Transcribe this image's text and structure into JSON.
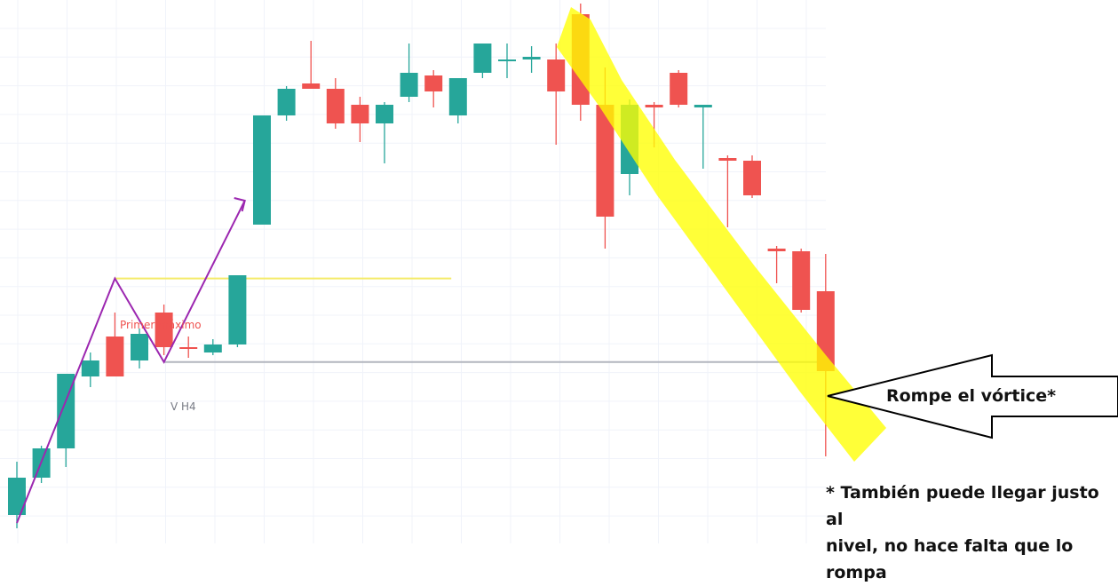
{
  "colors": {
    "up": "#26a69a",
    "down": "#ef5350",
    "grid": "#f0f3fa",
    "zigzag": "#9c27b0",
    "level_primer": "#f4eb67",
    "level_vh4": "#b2b5be",
    "highlight": "#ffff00",
    "text_dark": "#111111",
    "text_primer": "#ef5350",
    "text_vh4": "#787b86"
  },
  "annotations": {
    "primer_maximo": "Primer máximo",
    "v_h4": "V H4",
    "rompe": "Rompe el vórtice*",
    "footnote_line1": "* También puede llegar justo al",
    "footnote_line2": "nivel, no hace falta que lo rompa"
  },
  "chart_data": {
    "type": "candlestick",
    "title": "",
    "xlabel": "",
    "ylabel": "",
    "axes_labels_visible": false,
    "grid": true,
    "ylim": [
      0,
      100
    ],
    "levels": [
      {
        "label": "Primer máximo",
        "value": 47.4,
        "from_index": 4,
        "to_index": 17
      },
      {
        "label": "V H4",
        "value": 31.7,
        "from_index": 6,
        "to_index": 32
      }
    ],
    "zigzag": [
      {
        "index": 0,
        "value": 1.5
      },
      {
        "index": 4,
        "value": 47.4
      },
      {
        "index": 6,
        "value": 31.7
      },
      {
        "index": 9.3,
        "value": 62.0
      }
    ],
    "candles": [
      {
        "o": 3.0,
        "h": 13.0,
        "l": 0.5,
        "c": 10.0
      },
      {
        "o": 10.0,
        "h": 16.0,
        "l": 9.0,
        "c": 15.5
      },
      {
        "o": 15.5,
        "h": 28.5,
        "l": 12.0,
        "c": 29.5
      },
      {
        "o": 29.0,
        "h": 33.5,
        "l": 27.0,
        "c": 32.0
      },
      {
        "o": 36.5,
        "h": 41.0,
        "l": 29.0,
        "c": 29.0
      },
      {
        "o": 32.0,
        "h": 38.0,
        "l": 30.5,
        "c": 37.0
      },
      {
        "o": 41.0,
        "h": 42.5,
        "l": 33.0,
        "c": 34.5
      },
      {
        "o": 34.5,
        "h": 36.5,
        "l": 32.5,
        "c": 34.2
      },
      {
        "o": 33.5,
        "h": 36.0,
        "l": 33.0,
        "c": 35.0
      },
      {
        "o": 35.0,
        "h": 47.5,
        "l": 34.5,
        "c": 48.0
      },
      {
        "o": 57.5,
        "h": 78.0,
        "l": 57.5,
        "c": 78.0
      },
      {
        "o": 78.0,
        "h": 83.5,
        "l": 77.0,
        "c": 83.0
      },
      {
        "o": 84.0,
        "h": 92.0,
        "l": 83.5,
        "c": 83.0
      },
      {
        "o": 83.0,
        "h": 85.0,
        "l": 75.5,
        "c": 76.5
      },
      {
        "o": 80.0,
        "h": 81.5,
        "l": 73.0,
        "c": 76.5
      },
      {
        "o": 76.5,
        "h": 80.5,
        "l": 69.0,
        "c": 80.0
      },
      {
        "o": 81.5,
        "h": 91.5,
        "l": 80.5,
        "c": 86.0
      },
      {
        "o": 85.5,
        "h": 86.5,
        "l": 79.5,
        "c": 82.5
      },
      {
        "o": 78.0,
        "h": 85.0,
        "l": 76.5,
        "c": 85.0
      },
      {
        "o": 86.0,
        "h": 91.5,
        "l": 85.0,
        "c": 91.5
      },
      {
        "o": 88.5,
        "h": 91.5,
        "l": 85.0,
        "c": 88.5
      },
      {
        "o": 88.5,
        "h": 91.0,
        "l": 86.0,
        "c": 89.0
      },
      {
        "o": 88.5,
        "h": 91.5,
        "l": 72.5,
        "c": 82.5
      },
      {
        "o": 97.0,
        "h": 99.0,
        "l": 77.0,
        "c": 80.0
      },
      {
        "o": 80.0,
        "h": 87.0,
        "l": 53.0,
        "c": 59.0
      },
      {
        "o": 67.0,
        "h": 81.0,
        "l": 63.0,
        "c": 80.0
      },
      {
        "o": 80.0,
        "h": 80.5,
        "l": 72.0,
        "c": 79.5
      },
      {
        "o": 86.0,
        "h": 86.5,
        "l": 79.5,
        "c": 80.0
      },
      {
        "o": 79.5,
        "h": 80.0,
        "l": 68.0,
        "c": 80.0
      },
      {
        "o": 70.0,
        "h": 70.5,
        "l": 57.0,
        "c": 69.5
      },
      {
        "o": 69.5,
        "h": 70.5,
        "l": 62.5,
        "c": 63.0
      },
      {
        "o": 53.0,
        "h": 53.5,
        "l": 46.5,
        "c": 52.5
      },
      {
        "o": 52.5,
        "h": 53.0,
        "l": 41.0,
        "c": 41.5
      },
      {
        "o": 45.0,
        "h": 52.0,
        "l": 14.0,
        "c": 30.0
      }
    ]
  }
}
